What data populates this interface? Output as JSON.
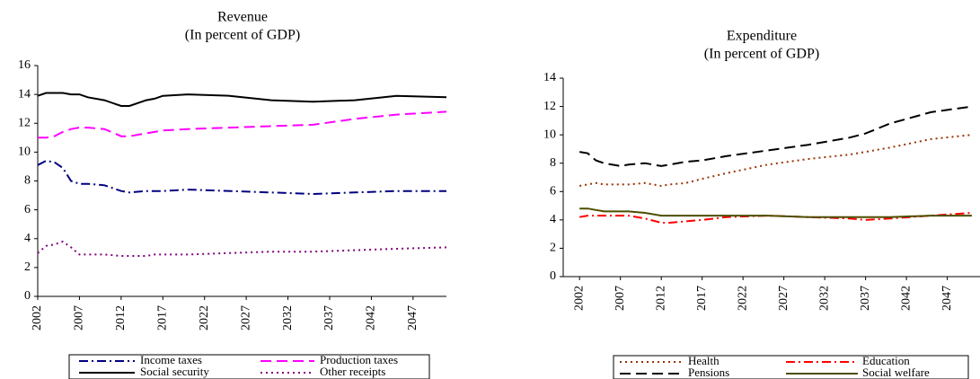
{
  "chart_data": [
    {
      "type": "line",
      "title": "Revenue",
      "subtitle": "(In percent of GDP)",
      "x": [
        2002,
        2003,
        2004,
        2005,
        2006,
        2007,
        2008,
        2010,
        2012,
        2013,
        2015,
        2016,
        2017,
        2020,
        2025,
        2030,
        2035,
        2040,
        2045,
        2051
      ],
      "xlim": [
        2002,
        2051
      ],
      "xticks": [
        2002,
        2007,
        2012,
        2017,
        2022,
        2027,
        2032,
        2037,
        2042,
        2047
      ],
      "ylim": [
        0,
        16
      ],
      "yticks": [
        0,
        2,
        4,
        6,
        8,
        10,
        12,
        14,
        16
      ],
      "grid": false,
      "series": [
        {
          "name": "Income taxes",
          "color": "#000080",
          "dash": "dash-dot",
          "values": [
            9.1,
            9.4,
            9.3,
            8.9,
            8.0,
            7.8,
            7.8,
            7.7,
            7.3,
            7.2,
            7.3,
            7.3,
            7.3,
            7.4,
            7.3,
            7.2,
            7.1,
            7.2,
            7.3,
            7.3
          ]
        },
        {
          "name": "Production taxes",
          "color": "#ff00ff",
          "dash": "dash",
          "values": [
            11.0,
            11.0,
            11.1,
            11.4,
            11.6,
            11.7,
            11.7,
            11.6,
            11.1,
            11.1,
            11.3,
            11.4,
            11.5,
            11.6,
            11.7,
            11.8,
            11.9,
            12.3,
            12.6,
            12.8
          ]
        },
        {
          "name": "Social security",
          "color": "#000000",
          "dash": "solid",
          "values": [
            13.9,
            14.1,
            14.1,
            14.1,
            14.0,
            14.0,
            13.8,
            13.6,
            13.2,
            13.2,
            13.6,
            13.7,
            13.9,
            14.0,
            13.9,
            13.6,
            13.5,
            13.6,
            13.9,
            13.8
          ]
        },
        {
          "name": "Other receipts",
          "color": "#800080",
          "dash": "dot",
          "values": [
            3.0,
            3.5,
            3.6,
            3.8,
            3.4,
            2.9,
            2.9,
            2.9,
            2.8,
            2.8,
            2.8,
            2.9,
            2.9,
            2.9,
            3.0,
            3.1,
            3.1,
            3.2,
            3.3,
            3.4
          ]
        }
      ]
    },
    {
      "type": "line",
      "title": "Expenditure",
      "subtitle": "(In percent of GDP)",
      "x": [
        2002,
        2003,
        2004,
        2005,
        2007,
        2008,
        2010,
        2012,
        2013,
        2015,
        2017,
        2020,
        2025,
        2030,
        2035,
        2037,
        2040,
        2045,
        2050
      ],
      "xlim": [
        2000,
        2051
      ],
      "xticks": [
        2002,
        2007,
        2012,
        2017,
        2022,
        2027,
        2032,
        2037,
        2042,
        2047
      ],
      "ylim": [
        0,
        14
      ],
      "yticks": [
        0,
        2,
        4,
        6,
        8,
        10,
        12,
        14
      ],
      "grid": false,
      "series": [
        {
          "name": "Health",
          "color": "#993300",
          "dash": "dot",
          "values": [
            6.4,
            6.5,
            6.6,
            6.5,
            6.5,
            6.5,
            6.6,
            6.4,
            6.5,
            6.6,
            6.9,
            7.3,
            7.9,
            8.3,
            8.6,
            8.8,
            9.1,
            9.7,
            10.0
          ]
        },
        {
          "name": "Education",
          "color": "#ff0000",
          "dash": "dash-dot",
          "values": [
            4.2,
            4.3,
            4.3,
            4.3,
            4.3,
            4.3,
            4.1,
            3.8,
            3.8,
            3.9,
            4.0,
            4.2,
            4.3,
            4.2,
            4.1,
            4.0,
            4.1,
            4.3,
            4.5
          ]
        },
        {
          "name": "Pensions",
          "color": "#000000",
          "dash": "dash",
          "values": [
            8.8,
            8.7,
            8.2,
            8.0,
            7.8,
            7.9,
            8.0,
            7.8,
            7.9,
            8.1,
            8.2,
            8.5,
            8.9,
            9.3,
            9.8,
            10.1,
            10.8,
            11.6,
            12.0
          ]
        },
        {
          "name": "Social welfare",
          "color": "#4d4d00",
          "dash": "solid",
          "values": [
            4.8,
            4.8,
            4.7,
            4.6,
            4.6,
            4.6,
            4.5,
            4.3,
            4.3,
            4.3,
            4.3,
            4.3,
            4.3,
            4.2,
            4.2,
            4.2,
            4.2,
            4.3,
            4.3
          ]
        }
      ]
    }
  ]
}
